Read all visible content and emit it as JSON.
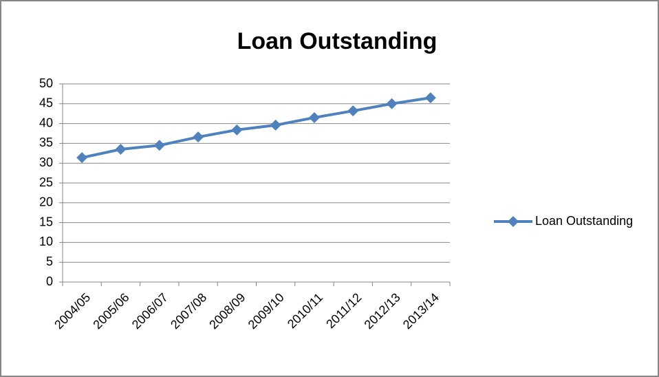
{
  "chart_data": {
    "type": "line",
    "title": "Loan Outstanding",
    "categories": [
      "2004/05",
      "2005/06",
      "2006/07",
      "2007/08",
      "2008/09",
      "2009/10",
      "2010/11",
      "2011/12",
      "2012/13",
      "2013/14"
    ],
    "series": [
      {
        "name": "Loan Outstanding",
        "color": "#4f81bd",
        "values": [
          31.4,
          33.5,
          34.5,
          36.6,
          38.4,
          39.6,
          41.5,
          43.2,
          45.0,
          46.5
        ]
      }
    ],
    "ylim": [
      0,
      50
    ],
    "yticks": [
      0,
      5,
      10,
      15,
      20,
      25,
      30,
      35,
      40,
      45,
      50
    ],
    "grid": true,
    "legend": "right"
  }
}
